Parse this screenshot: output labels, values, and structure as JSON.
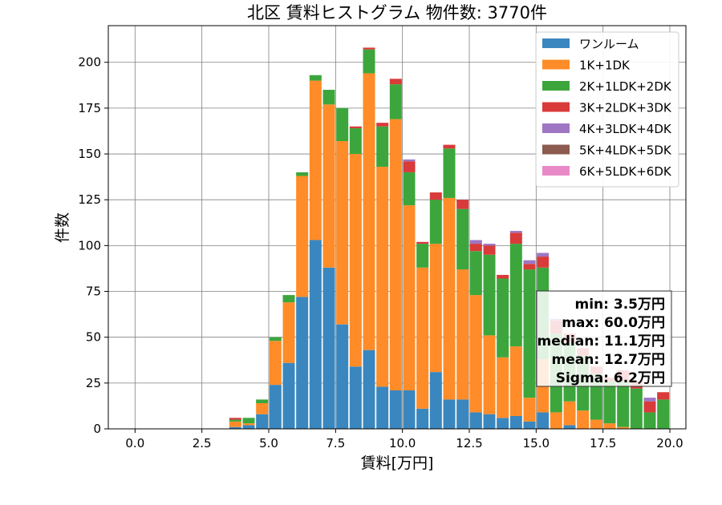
{
  "chart_data": {
    "type": "bar",
    "stacked": true,
    "title": "北区 賃料ヒストグラム 物件数: 3770件",
    "xlabel": "賃料[万円]",
    "ylabel": "件数",
    "xlim": [
      -1.0,
      20.6
    ],
    "ylim": [
      0,
      220
    ],
    "xticks": [
      "0.0",
      "2.5",
      "5.0",
      "7.5",
      "10.0",
      "12.5",
      "15.0",
      "17.5",
      "20.0"
    ],
    "yticks": [
      "0",
      "25",
      "50",
      "75",
      "100",
      "125",
      "150",
      "175",
      "200"
    ],
    "grid": true,
    "legend_position": "top-right",
    "bin_width": 0.5,
    "x": [
      3.75,
      4.25,
      4.75,
      5.25,
      5.75,
      6.25,
      6.75,
      7.25,
      7.75,
      8.25,
      8.75,
      9.25,
      9.75,
      10.25,
      10.75,
      11.25,
      11.75,
      12.25,
      12.75,
      13.25,
      13.75,
      14.25,
      14.75,
      15.25,
      15.75,
      16.25,
      16.75,
      17.25,
      17.75,
      18.25,
      18.75,
      19.25,
      19.75
    ],
    "series": [
      {
        "name": "ワンルーム",
        "color": "#3a87bf",
        "values": [
          1,
          2,
          8,
          24,
          36,
          72,
          103,
          88,
          57,
          34,
          43,
          23,
          21,
          21,
          11,
          31,
          16,
          16,
          9,
          8,
          6,
          7,
          4,
          9,
          0,
          2,
          0,
          0,
          0,
          0,
          0,
          0,
          0
        ]
      },
      {
        "name": "1K+1DK",
        "color": "#ff8c28",
        "values": [
          3,
          1,
          6,
          24,
          33,
          66,
          87,
          89,
          100,
          116,
          151,
          120,
          148,
          101,
          77,
          70,
          110,
          71,
          64,
          43,
          33,
          38,
          13,
          29,
          9,
          13,
          10,
          5,
          3,
          1,
          0,
          0,
          0
        ]
      },
      {
        "name": "2K+1LDK+2DK",
        "color": "#3ca63c",
        "values": [
          1,
          3,
          2,
          2,
          4,
          2,
          3,
          8,
          18,
          14,
          13,
          22,
          19,
          18,
          13,
          24,
          27,
          33,
          24,
          44,
          43,
          56,
          70,
          50,
          43,
          32,
          30,
          25,
          23,
          25,
          22,
          9,
          16
        ]
      },
      {
        "name": "3K+2LDK+3DK",
        "color": "#d93a3a",
        "values": [
          1,
          0,
          0,
          0,
          0,
          0,
          0,
          0,
          0,
          1,
          1,
          2,
          3,
          6,
          1,
          4,
          2,
          5,
          4,
          5,
          2,
          6,
          3,
          6,
          7,
          5,
          4,
          4,
          2,
          6,
          4,
          6,
          4
        ]
      },
      {
        "name": "4K+3LDK+4DK",
        "color": "#9e76c4",
        "values": [
          0,
          0,
          0,
          0,
          0,
          0,
          0,
          0,
          0,
          0,
          0,
          0,
          0,
          1,
          0,
          0,
          0,
          0,
          2,
          1,
          0,
          1,
          2,
          2,
          1,
          0,
          0,
          0,
          0,
          0,
          0,
          2,
          0
        ]
      },
      {
        "name": "5K+4LDK+5DK",
        "color": "#8c5a4e",
        "values": [
          0,
          0,
          0,
          0,
          0,
          0,
          0,
          0,
          0,
          0,
          0,
          0,
          0,
          0,
          0,
          0,
          0,
          0,
          0,
          0,
          0,
          0,
          0,
          0,
          0,
          0,
          0,
          0,
          0,
          0,
          0,
          0,
          0
        ]
      },
      {
        "name": "6K+5LDK+6DK",
        "color": "#e88ac8",
        "values": [
          0,
          0,
          0,
          0,
          0,
          0,
          0,
          0,
          0,
          0,
          0,
          0,
          0,
          0,
          0,
          0,
          0,
          0,
          0,
          0,
          0,
          0,
          0,
          0,
          0,
          0,
          0,
          0,
          0,
          0,
          0,
          0,
          0
        ]
      }
    ],
    "stats": {
      "min": "min: 3.5万円",
      "max": "max: 60.0万円",
      "median": "median: 11.1万円",
      "mean": "mean: 12.7万円",
      "sigma": "Sigma: 6.2万円"
    }
  }
}
